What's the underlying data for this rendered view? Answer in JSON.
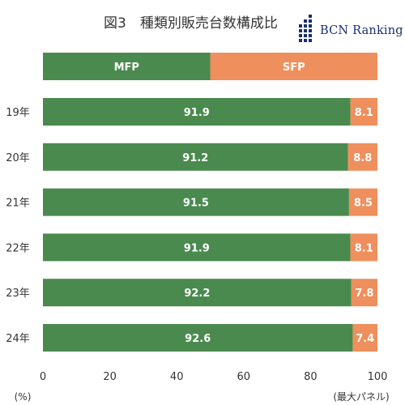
{
  "title": "図3　種類別販売台数構成比",
  "logo": {
    "text": "BCN Ranking"
  },
  "chart_data": {
    "type": "bar",
    "orientation": "horizontal",
    "stacked": true,
    "legend_bar": {
      "labels": [
        "MFP",
        "SFP"
      ],
      "values": [
        50,
        50
      ]
    },
    "categories": [
      "19年",
      "20年",
      "21年",
      "22年",
      "23年",
      "24年"
    ],
    "series": [
      {
        "name": "MFP",
        "values": [
          91.9,
          91.2,
          91.5,
          91.9,
          92.2,
          92.6
        ],
        "color": "#4a8a4e"
      },
      {
        "name": "SFP",
        "values": [
          8.1,
          8.8,
          8.5,
          8.1,
          7.8,
          7.4
        ],
        "color": "#ee8f5d"
      }
    ],
    "value_labels": {
      "MFP": [
        "91.9",
        "91.2",
        "91.5",
        "91.9",
        "92.2",
        "92.6"
      ],
      "SFP": [
        "8.1",
        "8.8",
        "8.5",
        "8.1",
        "7.8",
        "7.4"
      ]
    },
    "x_ticks": [
      "0",
      "20",
      "40",
      "60",
      "80",
      "100"
    ],
    "xlim": [
      0,
      100
    ],
    "x_unit_label": "(%)",
    "x_note": "(最大パネル)",
    "grid": false
  }
}
